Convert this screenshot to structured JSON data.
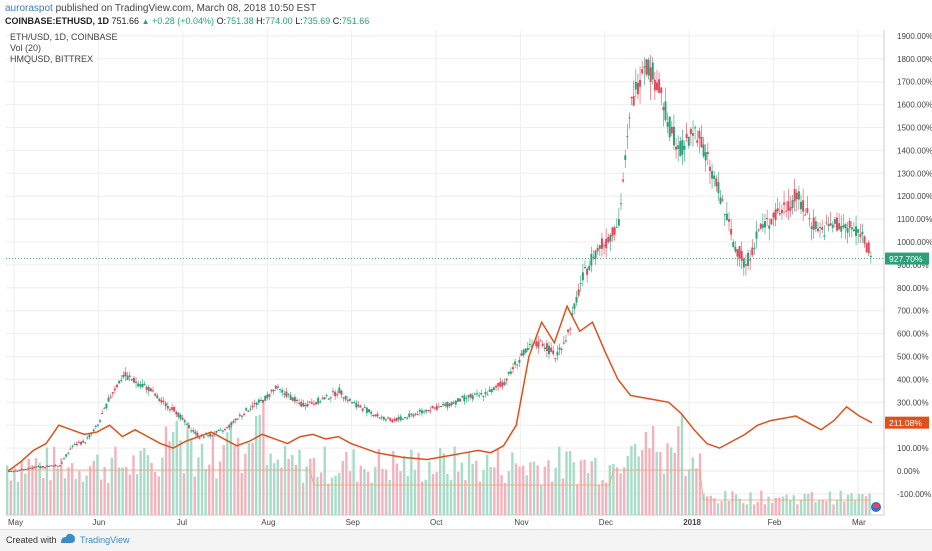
{
  "header": {
    "user": "auroraspot",
    "published": " published on TradingView.com, March 08, 2018 10:50 EST",
    "symbol": "COINBASE:ETHUSD, 1D",
    "last": "751.66",
    "change": "+0.28 (+0.04%)",
    "o_label": "O:",
    "o": "751.38",
    "h_label": "H:",
    "h": "774.00",
    "l_label": "L:",
    "l": "735.69",
    "c_label": "C:",
    "c": "751.66"
  },
  "legend": [
    "ETH/USD, 1D, COINBASE",
    "Vol (20)",
    "HMQUSD, BITTREX"
  ],
  "footer": {
    "created": "Created with",
    "brand": "TradingView"
  },
  "colors": {
    "up": "#2aa17a",
    "down": "#e04a5c",
    "compare": "#e0501a",
    "vol_up": "#a8dcc8",
    "vol_down": "#f3b3bd",
    "vol_ma": "#f0a070",
    "grid": "#eeeeee"
  },
  "chart_data": {
    "type": "line",
    "x_labels": [
      "May",
      "Jun",
      "Jul",
      "Aug",
      "Sep",
      "Oct",
      "Nov",
      "Dec",
      "2018",
      "Feb",
      "Mar"
    ],
    "y_ticks": [
      "1900.00%",
      "1800.00%",
      "1700.00%",
      "1600.00%",
      "1500.00%",
      "1400.00%",
      "1300.00%",
      "1200.00%",
      "1100.00%",
      "1000.00%",
      "900.00%",
      "800.00%",
      "700.00%",
      "600.00%",
      "500.00%",
      "400.00%",
      "300.00%",
      "200.00%",
      "100.00%",
      "0.00%",
      "-100.00%"
    ],
    "ylim": [
      -200,
      1950
    ],
    "current_labels": {
      "ethusd": "927.70%",
      "hmqusd": "211.08%"
    },
    "series": [
      {
        "name": "ETH/USD, 1D, COINBASE",
        "values": [
          0,
          5,
          15,
          20,
          25,
          110,
          130,
          200,
          330,
          420,
          390,
          360,
          300,
          270,
          200,
          150,
          160,
          180,
          230,
          280,
          310,
          360,
          330,
          290,
          300,
          320,
          350,
          300,
          270,
          240,
          220,
          230,
          250,
          270,
          280,
          300,
          320,
          330,
          350,
          390,
          480,
          540,
          560,
          500,
          600,
          820,
          950,
          1000,
          1100,
          1600,
          1800,
          1700,
          1500,
          1400,
          1500,
          1350,
          1200,
          1000,
          900,
          1050,
          1100,
          1150,
          1200,
          1100,
          1050,
          1080,
          1060,
          1050,
          927.7
        ]
      },
      {
        "name": "HMQUSD, BITTREX",
        "values": [
          0,
          40,
          90,
          120,
          200,
          180,
          160,
          170,
          200,
          150,
          180,
          150,
          120,
          100,
          130,
          150,
          170,
          140,
          110,
          130,
          160,
          140,
          120,
          150,
          160,
          140,
          150,
          120,
          100,
          80,
          70,
          60,
          55,
          50,
          60,
          70,
          80,
          90,
          80,
          110,
          200,
          500,
          650,
          560,
          720,
          610,
          650,
          520,
          400,
          330,
          320,
          310,
          300,
          250,
          180,
          120,
          100,
          130,
          160,
          200,
          220,
          230,
          240,
          210,
          180,
          220,
          280,
          240,
          211.08
        ]
      }
    ]
  }
}
